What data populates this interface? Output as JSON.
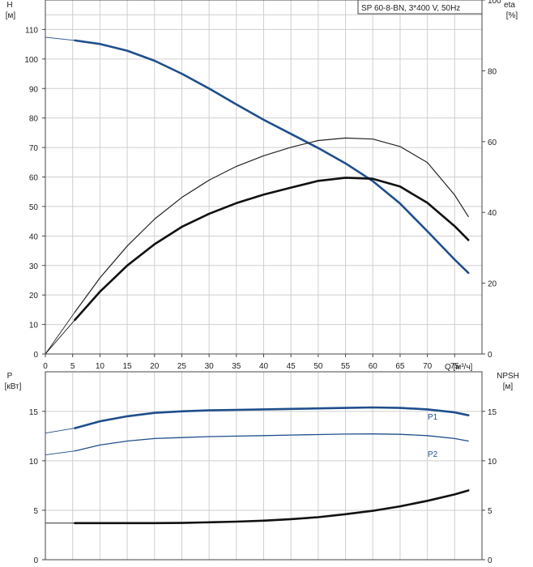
{
  "chart_data": [
    {
      "type": "line",
      "title": "SP 60-8-BN, 3*400 V, 50Hz",
      "xlabel": "Q [м³/ч]",
      "ylabel": "H",
      "ylabel_unit": "[м]",
      "y2label": "eta",
      "y2label_unit": "[%]",
      "xlim": [
        0,
        80
      ],
      "ylim": [
        0,
        120
      ],
      "y2lim": [
        0,
        100
      ],
      "x_ticks": [
        0,
        5,
        10,
        15,
        20,
        25,
        30,
        35,
        40,
        45,
        50,
        55,
        60,
        65,
        70,
        75
      ],
      "y_ticks": [
        0,
        10,
        20,
        30,
        40,
        50,
        60,
        70,
        80,
        90,
        100,
        110
      ],
      "y2_ticks": [
        0,
        20,
        40,
        60,
        80,
        100
      ],
      "grid": true,
      "series": [
        {
          "kind": "head",
          "axis": "left",
          "color": "#1f4e8c",
          "extension_x": [
            0,
            5.4
          ],
          "extension_y": [
            107.4,
            106.3
          ],
          "x": [
            5.4,
            10,
            15,
            20,
            25,
            30,
            35,
            40,
            45,
            50,
            55,
            60,
            65,
            70,
            75,
            77.5
          ],
          "y": [
            106.3,
            105.1,
            102.8,
            99.4,
            95.0,
            90.0,
            84.6,
            79.4,
            74.6,
            69.8,
            64.6,
            58.6,
            51.0,
            41.6,
            32.0,
            27.5
          ]
        },
        {
          "kind": "efficiency",
          "axis": "right",
          "color": "#222222",
          "extension_x": [
            0,
            5.4
          ],
          "extension_y": [
            0,
            11.8
          ],
          "x": [
            5.4,
            10,
            15,
            20,
            25,
            30,
            35,
            40,
            45,
            50,
            55,
            60,
            65,
            70,
            75,
            77.5
          ],
          "y": [
            11.8,
            21.5,
            30.5,
            38.1,
            44.2,
            49.1,
            53.0,
            56.0,
            58.4,
            60.3,
            61.0,
            60.7,
            58.6,
            54.1,
            44.9,
            38.8
          ]
        },
        {
          "kind": "pump-efficiency",
          "axis": "right",
          "color": "#111111",
          "extension_x": [
            0,
            5.4
          ],
          "extension_y": [
            0,
            9.6
          ],
          "x": [
            5.4,
            10,
            15,
            20,
            25,
            30,
            35,
            40,
            45,
            50,
            55,
            60,
            65,
            70,
            75,
            77.5
          ],
          "y": [
            9.6,
            17.6,
            25.0,
            31.0,
            35.9,
            39.6,
            42.6,
            45.0,
            47.0,
            48.9,
            49.8,
            49.5,
            47.3,
            42.7,
            36.1,
            32.2
          ]
        }
      ]
    },
    {
      "type": "line",
      "ylabel": "P",
      "ylabel_unit": "[кВт]",
      "y2label": "NPSH",
      "y2label_unit": "[м]",
      "xlim": [
        0,
        80
      ],
      "ylim": [
        0,
        19
      ],
      "y2lim": [
        0,
        19
      ],
      "y_ticks": [
        0,
        5,
        10,
        15
      ],
      "y2_ticks": [
        0,
        5,
        10,
        15
      ],
      "grid": true,
      "series": [
        {
          "name": "P1",
          "axis": "left",
          "color": "#1f4e8c",
          "extension_x": [
            0,
            5.4
          ],
          "extension_y": [
            12.8,
            13.3
          ],
          "x": [
            5.4,
            10,
            15,
            20,
            25,
            30,
            35,
            40,
            45,
            50,
            55,
            60,
            65,
            70,
            75,
            77.5
          ],
          "y": [
            13.3,
            14.0,
            14.5,
            14.85,
            15.0,
            15.1,
            15.15,
            15.2,
            15.25,
            15.3,
            15.35,
            15.4,
            15.35,
            15.2,
            14.9,
            14.6
          ]
        },
        {
          "name": "P2",
          "axis": "left",
          "color": "#1f4e8c",
          "extension_x": [
            0,
            5.4
          ],
          "extension_y": [
            10.6,
            11.0
          ],
          "x": [
            5.4,
            10,
            15,
            20,
            25,
            30,
            35,
            40,
            45,
            50,
            55,
            60,
            65,
            70,
            75,
            77.5
          ],
          "y": [
            11.0,
            11.6,
            12.0,
            12.25,
            12.35,
            12.45,
            12.5,
            12.55,
            12.6,
            12.65,
            12.7,
            12.72,
            12.68,
            12.55,
            12.25,
            12.0
          ]
        },
        {
          "kind": "npsh",
          "axis": "right",
          "color": "#111111",
          "extension_x": [
            0,
            5.4
          ],
          "extension_y": [
            3.7,
            3.7
          ],
          "x": [
            5.4,
            10,
            15,
            20,
            25,
            30,
            35,
            40,
            45,
            50,
            55,
            60,
            65,
            70,
            75,
            77.5
          ],
          "y": [
            3.7,
            3.7,
            3.7,
            3.7,
            3.72,
            3.78,
            3.85,
            3.95,
            4.1,
            4.3,
            4.6,
            4.95,
            5.4,
            5.95,
            6.6,
            7.0
          ]
        }
      ]
    }
  ]
}
